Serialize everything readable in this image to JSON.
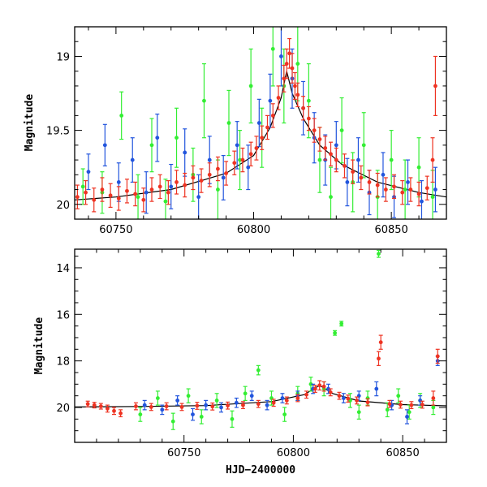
{
  "chart_data": [
    {
      "type": "scatter",
      "panel": "top",
      "title": "",
      "xlabel": "",
      "ylabel": "Magnitude",
      "xlim": [
        60735,
        60870
      ],
      "ylim": [
        20.1,
        18.8
      ],
      "y_inverted": true,
      "xticks": [
        60750,
        60800,
        60850
      ],
      "xtick_labels": [
        "60750",
        "60800",
        "60850"
      ],
      "yticks": [
        19,
        19.5,
        20
      ],
      "ytick_labels": [
        "19",
        "19.5",
        "20"
      ],
      "grid": false,
      "legend": null,
      "model_curve": {
        "color": "#000000",
        "x": [
          60735,
          60750,
          60770,
          60790,
          60800,
          60806,
          60810,
          60812,
          60814,
          60818,
          60824,
          60832,
          60845,
          60860,
          60870
        ],
        "y": [
          19.97,
          19.95,
          19.9,
          19.79,
          19.67,
          19.48,
          19.28,
          19.1,
          19.25,
          19.42,
          19.6,
          19.73,
          19.85,
          19.92,
          19.95
        ]
      },
      "series": [
        {
          "color": "#33ee33",
          "points": [
            [
              60738,
              19.88,
              0.12
            ],
            [
              60745,
              19.92,
              0.14
            ],
            [
              60752,
              19.4,
              0.16
            ],
            [
              60758,
              19.95,
              0.15
            ],
            [
              60763,
              19.6,
              0.18
            ],
            [
              60768,
              19.98,
              0.15
            ],
            [
              60772,
              19.55,
              0.2
            ],
            [
              60778,
              19.8,
              0.18
            ],
            [
              60782,
              19.3,
              0.25
            ],
            [
              60787,
              19.9,
              0.2
            ],
            [
              60791,
              19.45,
              0.22
            ],
            [
              60795,
              19.7,
              0.2
            ],
            [
              60799,
              19.2,
              0.25
            ],
            [
              60803,
              19.55,
              0.2
            ],
            [
              60807,
              18.95,
              0.25
            ],
            [
              60811,
              19.2,
              0.25
            ],
            [
              60816,
              19.05,
              0.25
            ],
            [
              60820,
              19.3,
              0.25
            ],
            [
              60824,
              19.7,
              0.22
            ],
            [
              60828,
              19.95,
              0.2
            ],
            [
              60832,
              19.5,
              0.22
            ],
            [
              60836,
              19.85,
              0.2
            ],
            [
              60840,
              19.6,
              0.22
            ],
            [
              60845,
              19.95,
              0.18
            ],
            [
              60850,
              19.7,
              0.2
            ],
            [
              60855,
              19.9,
              0.2
            ],
            [
              60860,
              19.75,
              0.2
            ],
            [
              60865,
              19.95,
              0.18
            ]
          ]
        },
        {
          "color": "#2255dd",
          "points": [
            [
              60740,
              19.78,
              0.12
            ],
            [
              60746,
              19.6,
              0.14
            ],
            [
              60751,
              19.85,
              0.13
            ],
            [
              60756,
              19.7,
              0.15
            ],
            [
              60761,
              19.92,
              0.14
            ],
            [
              60765,
              19.55,
              0.16
            ],
            [
              60770,
              19.88,
              0.15
            ],
            [
              60775,
              19.65,
              0.16
            ],
            [
              60780,
              19.95,
              0.15
            ],
            [
              60784,
              19.7,
              0.16
            ],
            [
              60789,
              19.82,
              0.15
            ],
            [
              60794,
              19.6,
              0.16
            ],
            [
              60798,
              19.75,
              0.15
            ],
            [
              60802,
              19.45,
              0.16
            ],
            [
              60806,
              19.3,
              0.18
            ],
            [
              60810,
              19.0,
              0.2
            ],
            [
              60814,
              19.15,
              0.2
            ],
            [
              60818,
              19.35,
              0.18
            ],
            [
              60822,
              19.55,
              0.17
            ],
            [
              60826,
              19.7,
              0.17
            ],
            [
              60830,
              19.6,
              0.16
            ],
            [
              60834,
              19.85,
              0.16
            ],
            [
              60838,
              19.7,
              0.15
            ],
            [
              60842,
              19.92,
              0.15
            ],
            [
              60847,
              19.8,
              0.15
            ],
            [
              60851,
              19.95,
              0.14
            ],
            [
              60856,
              19.85,
              0.15
            ],
            [
              60861,
              19.98,
              0.14
            ],
            [
              60866,
              19.9,
              0.15
            ]
          ]
        },
        {
          "color": "#ee3322",
          "points": [
            [
              60736,
              19.95,
              0.08
            ],
            [
              60739,
              19.92,
              0.08
            ],
            [
              60742,
              19.97,
              0.08
            ],
            [
              60745,
              19.9,
              0.08
            ],
            [
              60748,
              19.94,
              0.08
            ],
            [
              60751,
              19.96,
              0.08
            ],
            [
              60754,
              19.91,
              0.08
            ],
            [
              60757,
              19.93,
              0.08
            ],
            [
              60760,
              19.97,
              0.08
            ],
            [
              60763,
              19.9,
              0.08
            ],
            [
              60766,
              19.88,
              0.08
            ],
            [
              60769,
              19.92,
              0.08
            ],
            [
              60772,
              19.85,
              0.08
            ],
            [
              60775,
              19.87,
              0.08
            ],
            [
              60778,
              19.82,
              0.08
            ],
            [
              60781,
              19.84,
              0.08
            ],
            [
              60784,
              19.8,
              0.08
            ],
            [
              60787,
              19.76,
              0.08
            ],
            [
              60790,
              19.79,
              0.08
            ],
            [
              60793,
              19.72,
              0.08
            ],
            [
              60796,
              19.7,
              0.08
            ],
            [
              60799,
              19.66,
              0.08
            ],
            [
              60801,
              19.62,
              0.08
            ],
            [
              60803,
              19.55,
              0.08
            ],
            [
              60805,
              19.48,
              0.08
            ],
            [
              60807,
              19.4,
              0.08
            ],
            [
              60809,
              19.28,
              0.08
            ],
            [
              60811,
              19.15,
              0.09
            ],
            [
              60812,
              19.05,
              0.1
            ],
            [
              60813,
              18.98,
              0.1
            ],
            [
              60814,
              19.08,
              0.1
            ],
            [
              60815,
              19.2,
              0.09
            ],
            [
              60816,
              19.26,
              0.08
            ],
            [
              60818,
              19.35,
              0.08
            ],
            [
              60820,
              19.42,
              0.08
            ],
            [
              60822,
              19.5,
              0.08
            ],
            [
              60824,
              19.56,
              0.08
            ],
            [
              60826,
              19.62,
              0.08
            ],
            [
              60828,
              19.66,
              0.08
            ],
            [
              60830,
              19.7,
              0.08
            ],
            [
              60833,
              19.74,
              0.08
            ],
            [
              60836,
              19.78,
              0.08
            ],
            [
              60839,
              19.82,
              0.08
            ],
            [
              60842,
              19.85,
              0.08
            ],
            [
              60845,
              19.87,
              0.08
            ],
            [
              60848,
              19.9,
              0.08
            ],
            [
              60851,
              19.88,
              0.08
            ],
            [
              60854,
              19.92,
              0.08
            ],
            [
              60857,
              19.9,
              0.08
            ],
            [
              60860,
              19.93,
              0.08
            ],
            [
              60863,
              19.89,
              0.08
            ],
            [
              60865,
              19.7,
              0.15
            ],
            [
              60866,
              19.2,
              0.2
            ]
          ]
        }
      ]
    },
    {
      "type": "scatter",
      "panel": "bottom",
      "title": "",
      "xlabel": "HJD−2400000",
      "ylabel": "Magnitude",
      "xlim": [
        60700,
        60870
      ],
      "ylim": [
        21.5,
        13.2
      ],
      "y_inverted": true,
      "xticks": [
        60750,
        60800,
        60850
      ],
      "xtick_labels": [
        "60750",
        "60800",
        "60850"
      ],
      "yticks": [
        14,
        16,
        18,
        20
      ],
      "ytick_labels": [
        "14",
        "16",
        "18",
        "20"
      ],
      "grid": false,
      "legend": null,
      "model_curve": {
        "color": "#000000",
        "x": [
          60700,
          60730,
          60760,
          60790,
          60805,
          60812,
          60818,
          60830,
          60850,
          60870
        ],
        "y": [
          19.98,
          19.96,
          19.92,
          19.75,
          19.45,
          19.05,
          19.4,
          19.72,
          19.88,
          19.93
        ]
      },
      "series": [
        {
          "color": "#33ee33",
          "points": [
            [
              60730,
              20.3,
              0.3
            ],
            [
              60738,
              19.6,
              0.3
            ],
            [
              60745,
              20.6,
              0.35
            ],
            [
              60752,
              19.5,
              0.3
            ],
            [
              60758,
              20.4,
              0.3
            ],
            [
              60765,
              19.7,
              0.3
            ],
            [
              60772,
              20.5,
              0.35
            ],
            [
              60778,
              19.4,
              0.3
            ],
            [
              60784,
              18.4,
              0.2
            ],
            [
              60790,
              19.6,
              0.3
            ],
            [
              60796,
              20.3,
              0.3
            ],
            [
              60802,
              19.4,
              0.3
            ],
            [
              60808,
              19.0,
              0.3
            ],
            [
              60814,
              19.2,
              0.3
            ],
            [
              60819,
              16.8,
              0.1
            ],
            [
              60822,
              16.4,
              0.1
            ],
            [
              60826,
              19.7,
              0.3
            ],
            [
              60830,
              20.2,
              0.3
            ],
            [
              60834,
              19.6,
              0.3
            ],
            [
              60839,
              13.4,
              0.15
            ],
            [
              60843,
              20.1,
              0.3
            ],
            [
              60848,
              19.5,
              0.3
            ],
            [
              60853,
              20.2,
              0.3
            ],
            [
              60858,
              19.7,
              0.3
            ],
            [
              60864,
              20.0,
              0.3
            ]
          ]
        },
        {
          "color": "#2255dd",
          "points": [
            [
              60732,
              19.9,
              0.2
            ],
            [
              60740,
              20.1,
              0.2
            ],
            [
              60747,
              19.7,
              0.2
            ],
            [
              60754,
              20.3,
              0.25
            ],
            [
              60760,
              19.9,
              0.2
            ],
            [
              60767,
              20.0,
              0.2
            ],
            [
              60774,
              19.8,
              0.2
            ],
            [
              60781,
              19.5,
              0.2
            ],
            [
              60788,
              19.9,
              0.2
            ],
            [
              60795,
              19.6,
              0.2
            ],
            [
              60802,
              19.5,
              0.2
            ],
            [
              60809,
              19.2,
              0.2
            ],
            [
              60816,
              19.2,
              0.2
            ],
            [
              60823,
              19.6,
              0.2
            ],
            [
              60830,
              19.5,
              0.2
            ],
            [
              60838,
              19.2,
              0.3
            ],
            [
              60845,
              19.9,
              0.2
            ],
            [
              60852,
              20.4,
              0.3
            ],
            [
              60858,
              19.7,
              0.2
            ],
            [
              60866,
              18.0,
              0.2
            ]
          ]
        },
        {
          "color": "#ee3322",
          "points": [
            [
              60706,
              19.85,
              0.12
            ],
            [
              60709,
              19.9,
              0.12
            ],
            [
              60712,
              19.95,
              0.12
            ],
            [
              60715,
              20.05,
              0.15
            ],
            [
              60718,
              20.15,
              0.15
            ],
            [
              60721,
              20.25,
              0.15
            ],
            [
              60728,
              19.95,
              0.15
            ],
            [
              60735,
              19.98,
              0.15
            ],
            [
              60742,
              19.95,
              0.15
            ],
            [
              60749,
              19.98,
              0.15
            ],
            [
              60756,
              19.93,
              0.15
            ],
            [
              60763,
              19.96,
              0.15
            ],
            [
              60770,
              19.92,
              0.15
            ],
            [
              60777,
              19.9,
              0.15
            ],
            [
              60784,
              19.85,
              0.15
            ],
            [
              60791,
              19.8,
              0.15
            ],
            [
              60797,
              19.7,
              0.15
            ],
            [
              60802,
              19.6,
              0.15
            ],
            [
              60806,
              19.45,
              0.15
            ],
            [
              60810,
              19.2,
              0.15
            ],
            [
              60812,
              19.05,
              0.2
            ],
            [
              60814,
              19.1,
              0.2
            ],
            [
              60817,
              19.35,
              0.15
            ],
            [
              60821,
              19.5,
              0.15
            ],
            [
              60825,
              19.62,
              0.15
            ],
            [
              60829,
              19.7,
              0.15
            ],
            [
              60834,
              19.78,
              0.15
            ],
            [
              60839,
              17.9,
              0.3
            ],
            [
              60840,
              17.2,
              0.3
            ],
            [
              60844,
              19.85,
              0.15
            ],
            [
              60849,
              19.88,
              0.15
            ],
            [
              60854,
              19.9,
              0.15
            ],
            [
              60859,
              19.88,
              0.15
            ],
            [
              60864,
              19.6,
              0.3
            ],
            [
              60866,
              17.8,
              0.3
            ]
          ]
        }
      ]
    }
  ]
}
